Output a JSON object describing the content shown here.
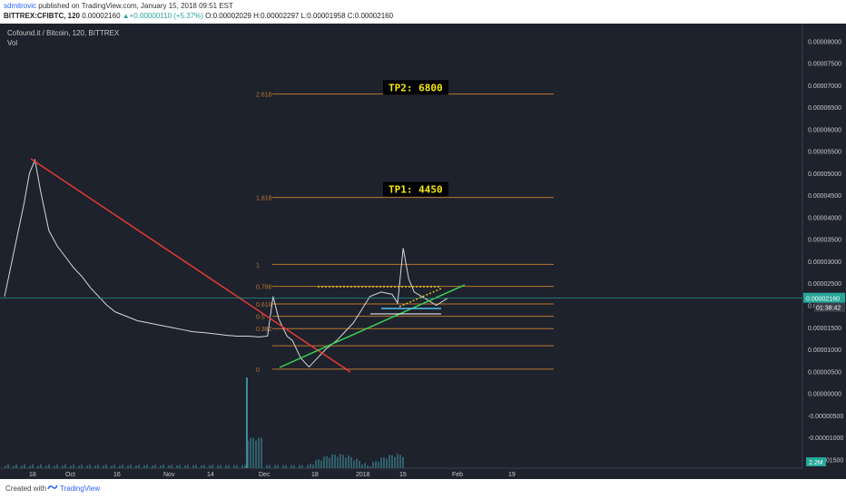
{
  "header": {
    "user": "sdmitrovic",
    "published": " published on TradingView.com, January 15, 2018 09:51 EST",
    "symbol_line": {
      "symbol": "BITTREX:CFIBTC, 120",
      "last": "0.00002160",
      "change": "+0.00000110 (+5.37%)",
      "open": "O:0.00002029",
      "high": "H:0.00002297",
      "low": "L:0.00001958",
      "close": "C:0.00002160"
    }
  },
  "legend": {
    "title": "Cofound.it / Bitcoin, 120, BITTREX",
    "vol": "Vol"
  },
  "footer": {
    "created": "Created with",
    "brand": "TradingView"
  },
  "colors": {
    "background": "#1e222d",
    "fib": "#b8772f",
    "downtrend": "#e53935",
    "uptrend": "#39d353",
    "resistance": "#e6c229",
    "support_box": "#4fc3f7",
    "price_line": "#26a69a",
    "label_bg": "#000000",
    "label_text": "#f5e90c"
  },
  "chart_data": {
    "type": "line",
    "y_scale": "linear",
    "ylim": [
      -1.7e-06,
      8.4e-06
    ],
    "yticks": [
      "0.00008000",
      "0.00007500",
      "0.00007000",
      "0.00006500",
      "0.00006000",
      "0.00005500",
      "0.00005000",
      "0.00004500",
      "0.00004000",
      "0.00003500",
      "0.00003000",
      "0.00002500",
      "0.00002000",
      "0.00001500",
      "0.00001000",
      "0.00000500",
      "0.00000000",
      "-0.00000500",
      "-0.00001000",
      "-0.00001500"
    ],
    "xticks": [
      "18",
      "Oct",
      "16",
      "Nov",
      "14",
      "Dec",
      "18",
      "2018",
      "15",
      "Feb",
      "19"
    ],
    "current_price_label": "0.00002160",
    "countdown_label": "01:38:42",
    "volume_label": "2.2M",
    "fib_levels": [
      {
        "label": "2.618",
        "value": 6.8e-05
      },
      {
        "label": "1.618",
        "value": 4.45e-05
      },
      {
        "label": "1",
        "value": 2.93e-05
      },
      {
        "label": "0.786",
        "value": 2.43e-05
      },
      {
        "label": "0.618",
        "value": 2.03e-05
      },
      {
        "label": "0.5",
        "value": 1.75e-05
      },
      {
        "label": "0.382",
        "value": 1.47e-05
      },
      {
        "label": "0",
        "value": 5.5e-06
      }
    ],
    "extra_fib_line": 1.08e-05,
    "annotations": [
      {
        "text": "TP2:  6800",
        "price": 6.95e-05
      },
      {
        "text": "TP1:  4450",
        "price": 4.64e-05
      }
    ],
    "series": [
      {
        "price": [
          [
            0,
            2.2e-05
          ],
          [
            0.02,
            3.4e-05
          ],
          [
            0.035,
            4.3e-05
          ],
          [
            0.045,
            5e-05
          ],
          [
            0.055,
            5.3e-05
          ],
          [
            0.065,
            4.6e-05
          ],
          [
            0.08,
            3.7e-05
          ],
          [
            0.095,
            3.35e-05
          ],
          [
            0.11,
            3.1e-05
          ],
          [
            0.125,
            2.85e-05
          ],
          [
            0.14,
            2.65e-05
          ],
          [
            0.155,
            2.4e-05
          ],
          [
            0.17,
            2.2e-05
          ],
          [
            0.185,
            2e-05
          ],
          [
            0.2,
            1.85e-05
          ],
          [
            0.22,
            1.75e-05
          ],
          [
            0.24,
            1.65e-05
          ],
          [
            0.26,
            1.6e-05
          ],
          [
            0.28,
            1.55e-05
          ],
          [
            0.3,
            1.5e-05
          ],
          [
            0.32,
            1.45e-05
          ],
          [
            0.34,
            1.4e-05
          ],
          [
            0.36,
            1.38e-05
          ],
          [
            0.38,
            1.35e-05
          ],
          [
            0.4,
            1.32e-05
          ],
          [
            0.42,
            1.3e-05
          ],
          [
            0.44,
            1.3e-05
          ],
          [
            0.46,
            1.28e-05
          ],
          [
            0.475,
            1.3e-05
          ],
          [
            0.485,
            2.2e-05
          ],
          [
            0.495,
            1.7e-05
          ],
          [
            0.51,
            1.3e-05
          ],
          [
            0.52,
            1.2e-05
          ],
          [
            0.535,
            8e-06
          ],
          [
            0.55,
            6e-06
          ],
          [
            0.565,
            8e-06
          ],
          [
            0.58,
            1e-05
          ],
          [
            0.6,
            1.2e-05
          ],
          [
            0.615,
            1.4e-05
          ],
          [
            0.63,
            1.6e-05
          ],
          [
            0.645,
            1.9e-05
          ],
          [
            0.66,
            2.2e-05
          ],
          [
            0.68,
            2.3e-05
          ],
          [
            0.7,
            2.25e-05
          ],
          [
            0.71,
            2.05e-05
          ],
          [
            0.72,
            3.3e-05
          ],
          [
            0.73,
            2.6e-05
          ],
          [
            0.74,
            2.3e-05
          ],
          [
            0.76,
            2.15e-05
          ],
          [
            0.78,
            2e-05
          ],
          [
            0.8,
            2.16e-05
          ]
        ]
      }
    ]
  }
}
